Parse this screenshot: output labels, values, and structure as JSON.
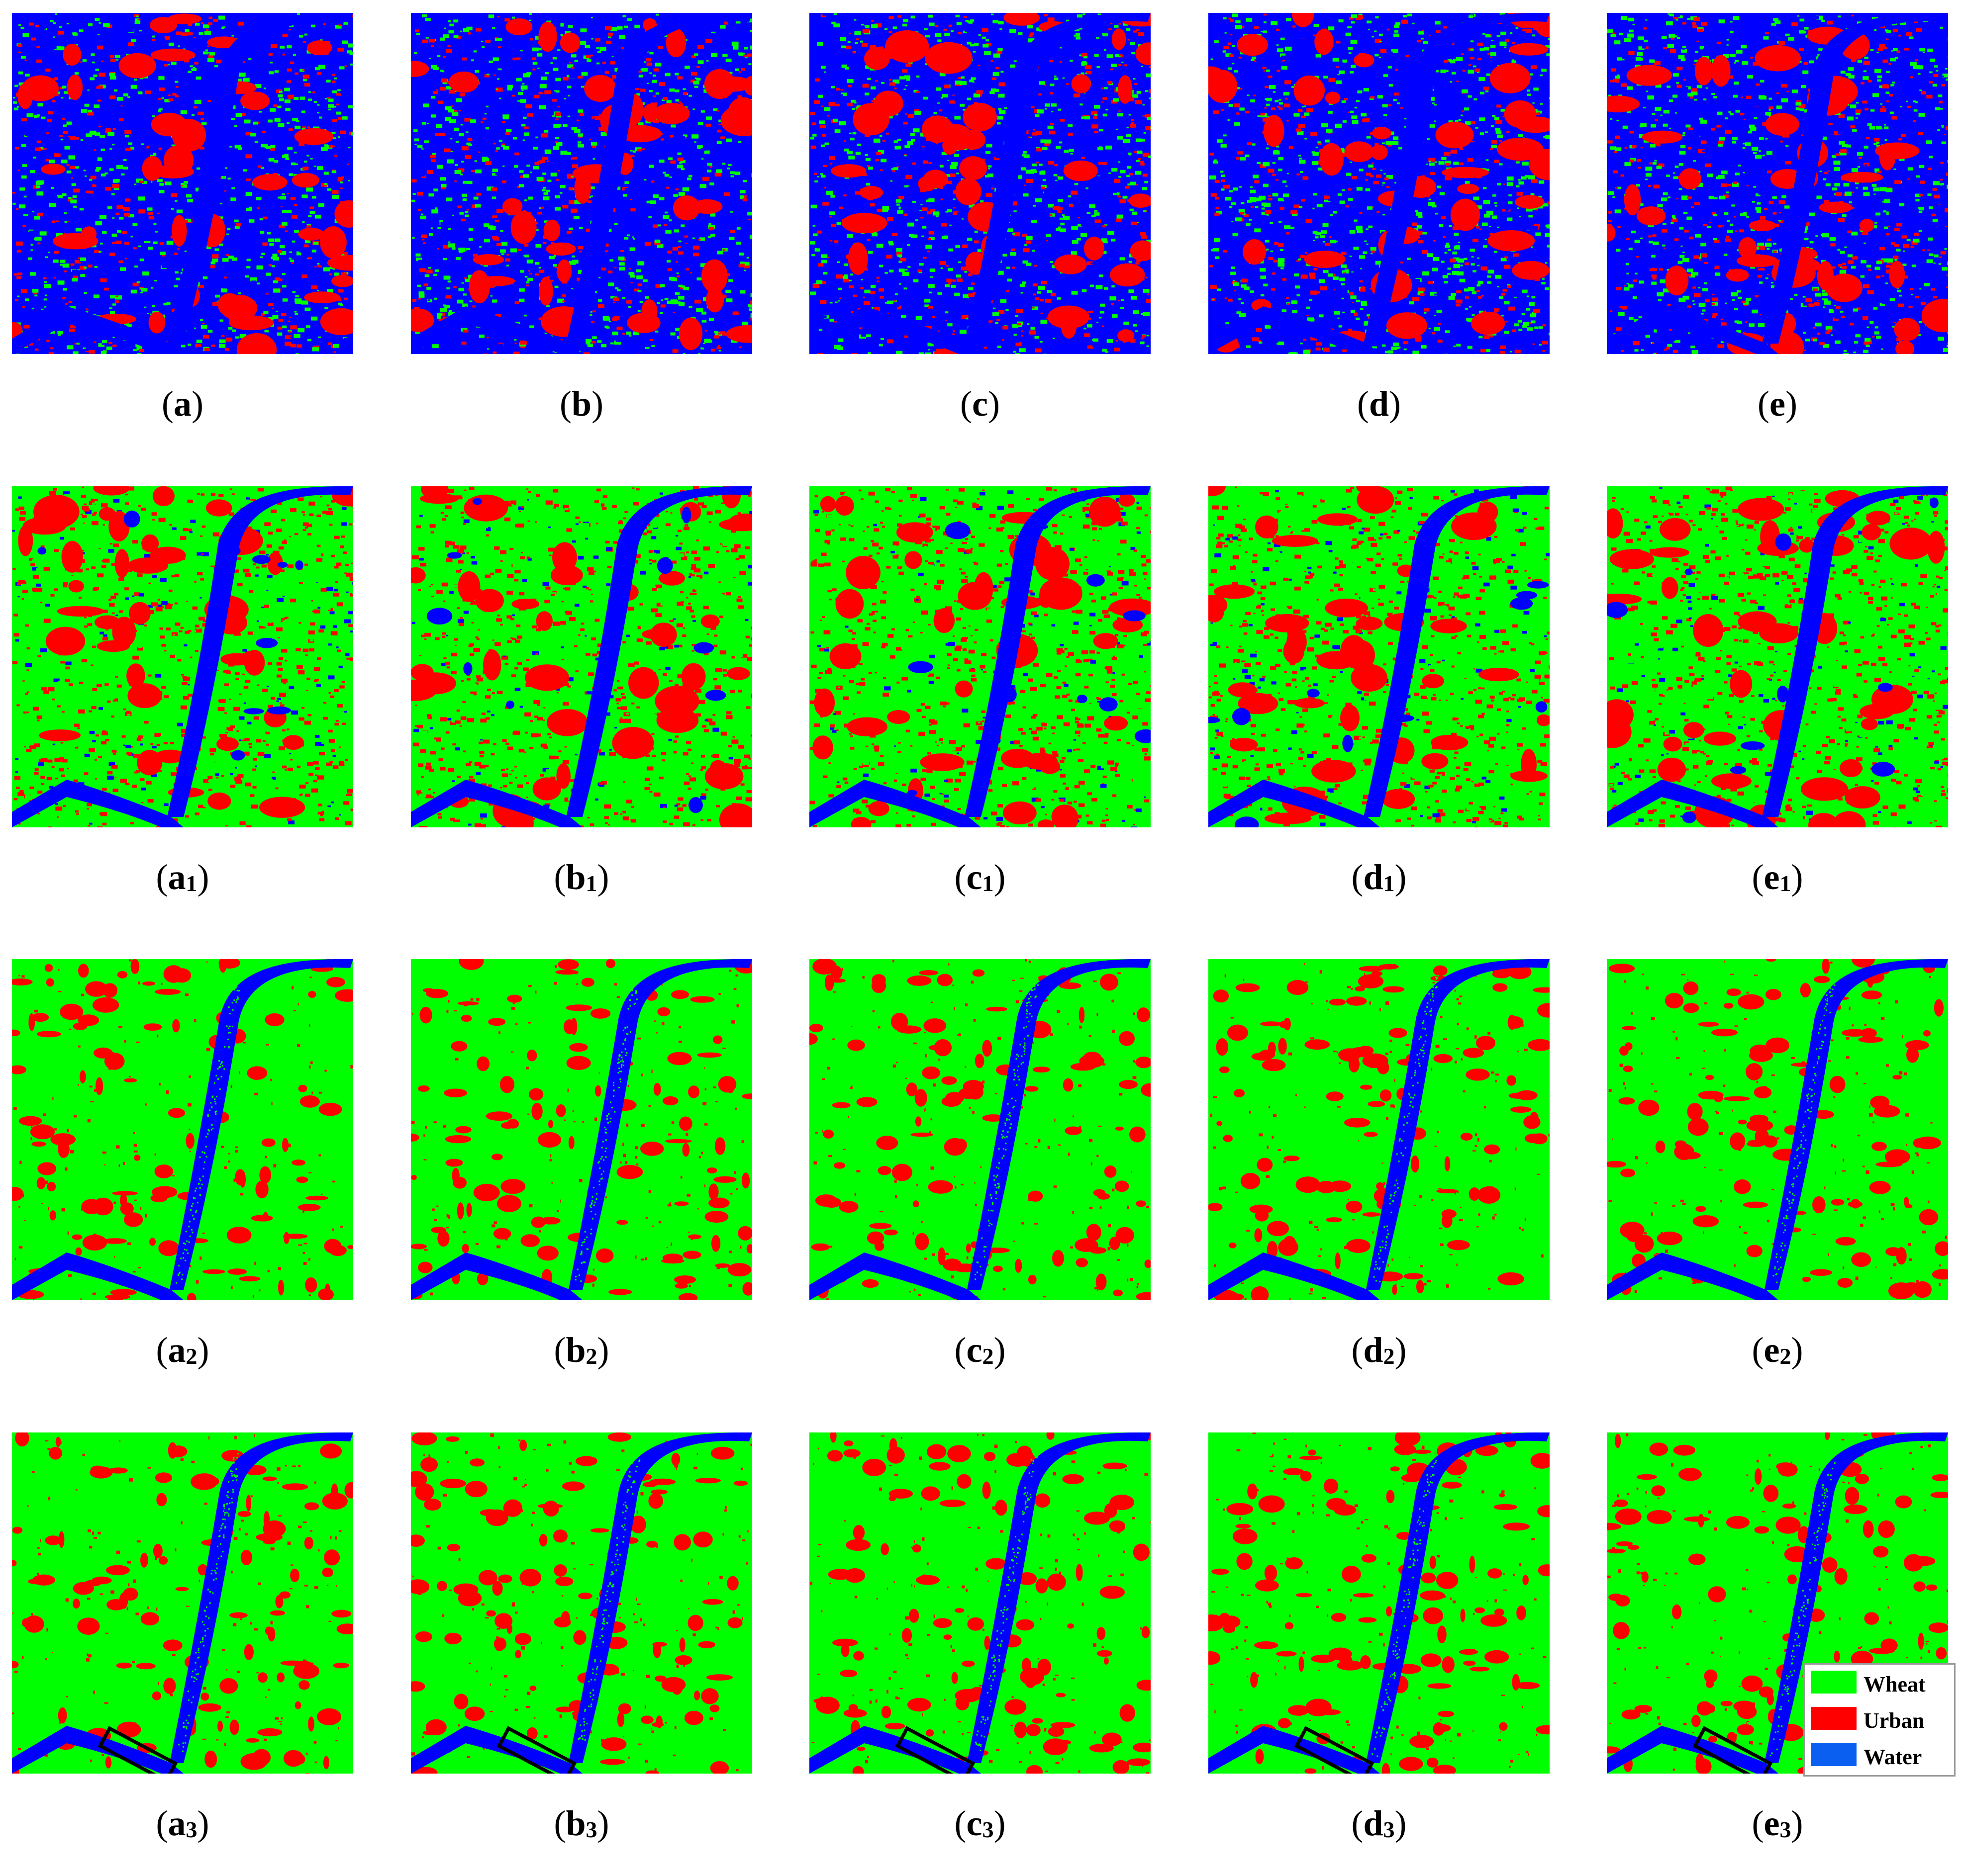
{
  "colors": {
    "wheat": "#00ff00",
    "urban": "#ff0000",
    "water": "#0000ff",
    "legend_water": "#0a5ff0"
  },
  "figure": {
    "panels": [
      {
        "letter": "a",
        "sub": "",
        "style": "mixed"
      },
      {
        "letter": "b",
        "sub": "",
        "style": "mixed"
      },
      {
        "letter": "c",
        "sub": "",
        "style": "mixed"
      },
      {
        "letter": "d",
        "sub": "",
        "style": "mixed"
      },
      {
        "letter": "e",
        "sub": "",
        "style": "mixed"
      },
      {
        "letter": "a",
        "sub": "1",
        "style": "mixed2"
      },
      {
        "letter": "b",
        "sub": "1",
        "style": "mixed2"
      },
      {
        "letter": "c",
        "sub": "1",
        "style": "mixed2"
      },
      {
        "letter": "d",
        "sub": "1",
        "style": "mixed2"
      },
      {
        "letter": "e",
        "sub": "1",
        "style": "mixed2"
      },
      {
        "letter": "a",
        "sub": "2",
        "style": "clean"
      },
      {
        "letter": "b",
        "sub": "2",
        "style": "clean"
      },
      {
        "letter": "c",
        "sub": "2",
        "style": "clean"
      },
      {
        "letter": "d",
        "sub": "2",
        "style": "clean"
      },
      {
        "letter": "e",
        "sub": "2",
        "style": "clean"
      },
      {
        "letter": "a",
        "sub": "3",
        "style": "clean",
        "box": true
      },
      {
        "letter": "b",
        "sub": "3",
        "style": "clean",
        "box": true
      },
      {
        "letter": "c",
        "sub": "3",
        "style": "clean",
        "box": true
      },
      {
        "letter": "d",
        "sub": "3",
        "style": "clean",
        "box": true
      },
      {
        "letter": "e",
        "sub": "3",
        "style": "clean",
        "box": true
      }
    ]
  },
  "legend": {
    "items": [
      {
        "label": "Wheat",
        "color": "#00ff00"
      },
      {
        "label": "Urban",
        "color": "#ff0000"
      },
      {
        "label": "Water",
        "color": "#0a5ff0"
      }
    ]
  }
}
